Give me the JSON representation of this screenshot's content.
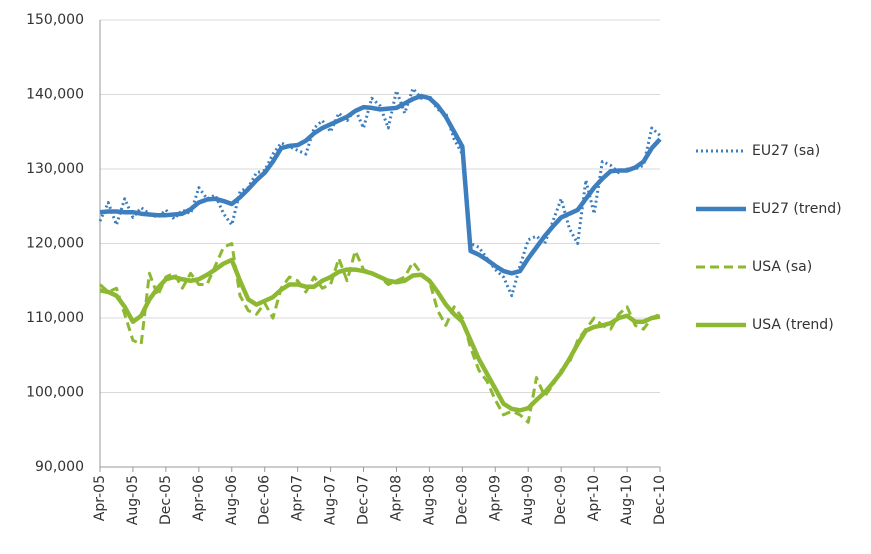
{
  "chart_data": {
    "type": "line",
    "categories": [
      "Apr-05",
      null,
      null,
      null,
      "Aug-05",
      null,
      null,
      null,
      "Dec-05",
      null,
      null,
      null,
      "Apr-06",
      null,
      null,
      null,
      "Aug-06",
      null,
      null,
      null,
      "Dec-06",
      null,
      null,
      null,
      "Apr-07",
      null,
      null,
      null,
      "Aug-07",
      null,
      null,
      null,
      "Dec-07",
      null,
      null,
      null,
      "Apr-08",
      null,
      null,
      null,
      "Aug-08",
      null,
      null,
      null,
      "Dec-08",
      null,
      null,
      null,
      "Apr-09",
      null,
      null,
      null,
      "Aug-09",
      null,
      null,
      null,
      "Dec-09",
      null,
      null,
      null,
      "Apr-10",
      null,
      null,
      null,
      "Aug-10",
      null,
      null,
      null,
      "Dec-10"
    ],
    "series": [
      {
        "name": "EU27 (sa)",
        "color": "#3d7ebf",
        "dash": "dotted",
        "values": [
          123000,
          125500,
          122500,
          126000,
          123500,
          124800,
          124000,
          123500,
          124500,
          123300,
          124500,
          124000,
          127500,
          126000,
          126500,
          124000,
          122500,
          127000,
          127500,
          129500,
          129800,
          132000,
          133500,
          133000,
          132500,
          132000,
          135500,
          136500,
          135000,
          137500,
          136500,
          138000,
          135500,
          139500,
          138500,
          135500,
          140500,
          137500,
          140800,
          139500,
          139800,
          138000,
          137500,
          134000,
          132000,
          120000,
          119500,
          118000,
          116500,
          115500,
          113000,
          117000,
          120500,
          121000,
          120000,
          123000,
          126000,
          122000,
          120000,
          128500,
          124000,
          131000,
          130500,
          129500,
          130000,
          130000,
          130500,
          135500,
          134500
        ]
      },
      {
        "name": "EU27 (trend)",
        "color": "#3d7ebf",
        "dash": "solid",
        "values": [
          124200,
          124300,
          124300,
          124200,
          124200,
          124000,
          123900,
          123800,
          123800,
          123900,
          124000,
          124600,
          125500,
          125900,
          126000,
          125700,
          125300,
          126200,
          127300,
          128500,
          129500,
          131000,
          132800,
          133100,
          133200,
          133800,
          134800,
          135500,
          136000,
          136500,
          137000,
          137800,
          138300,
          138200,
          138000,
          138100,
          138200,
          138800,
          139400,
          139800,
          139500,
          138500,
          137000,
          135000,
          133000,
          119000,
          118500,
          117800,
          117000,
          116300,
          116000,
          116300,
          118000,
          119500,
          121000,
          122300,
          123500,
          124000,
          124500,
          126000,
          127500,
          128700,
          129700,
          129800,
          129800,
          130200,
          131000,
          132800,
          134000
        ]
      },
      {
        "name": "USA (sa)",
        "color": "#8db832",
        "dash": "dashed",
        "values": [
          114500,
          113500,
          114000,
          110500,
          107000,
          106500,
          116000,
          113000,
          115500,
          116000,
          114000,
          116000,
          114500,
          114500,
          117000,
          119500,
          120000,
          113000,
          111000,
          110500,
          112000,
          110000,
          114000,
          115500,
          115000,
          113500,
          115500,
          114000,
          114500,
          118000,
          115000,
          119000,
          116500,
          116000,
          115500,
          114500,
          115000,
          115500,
          117500,
          116000,
          115000,
          111000,
          109000,
          111500,
          110000,
          106000,
          103000,
          101500,
          99000,
          97000,
          97500,
          97000,
          96000,
          102000,
          99500,
          101000,
          103000,
          104000,
          107000,
          108500,
          110000,
          109000,
          108500,
          110500,
          111500,
          109000,
          108500,
          110000,
          110500
        ]
      },
      {
        "name": "USA (trend)",
        "color": "#8db832",
        "dash": "solid",
        "values": [
          113700,
          113500,
          113000,
          111500,
          109500,
          110300,
          112500,
          114000,
          115200,
          115500,
          115200,
          115000,
          115200,
          115800,
          116500,
          117300,
          117800,
          115000,
          112500,
          111800,
          112300,
          112800,
          113800,
          114500,
          114500,
          114200,
          114200,
          115000,
          115500,
          116200,
          116500,
          116500,
          116300,
          116000,
          115500,
          115000,
          114800,
          115000,
          115700,
          115800,
          115000,
          113500,
          111800,
          110500,
          109500,
          107000,
          104500,
          102500,
          100500,
          98500,
          97800,
          97600,
          97900,
          99000,
          100000,
          101300,
          102700,
          104500,
          106500,
          108300,
          108800,
          109000,
          109300,
          110000,
          110300,
          109500,
          109500,
          110000,
          110200
        ]
      }
    ],
    "ylim": [
      90000,
      150000
    ],
    "yticks": [
      {
        "value": 90000,
        "label": "90,000"
      },
      {
        "value": 100000,
        "label": "100,000"
      },
      {
        "value": 110000,
        "label": "110,000"
      },
      {
        "value": 120000,
        "label": "120,000"
      },
      {
        "value": 130000,
        "label": "130,000"
      },
      {
        "value": 140000,
        "label": "140,000"
      },
      {
        "value": 150000,
        "label": "150,000"
      }
    ],
    "grid": true,
    "legend": "right"
  }
}
